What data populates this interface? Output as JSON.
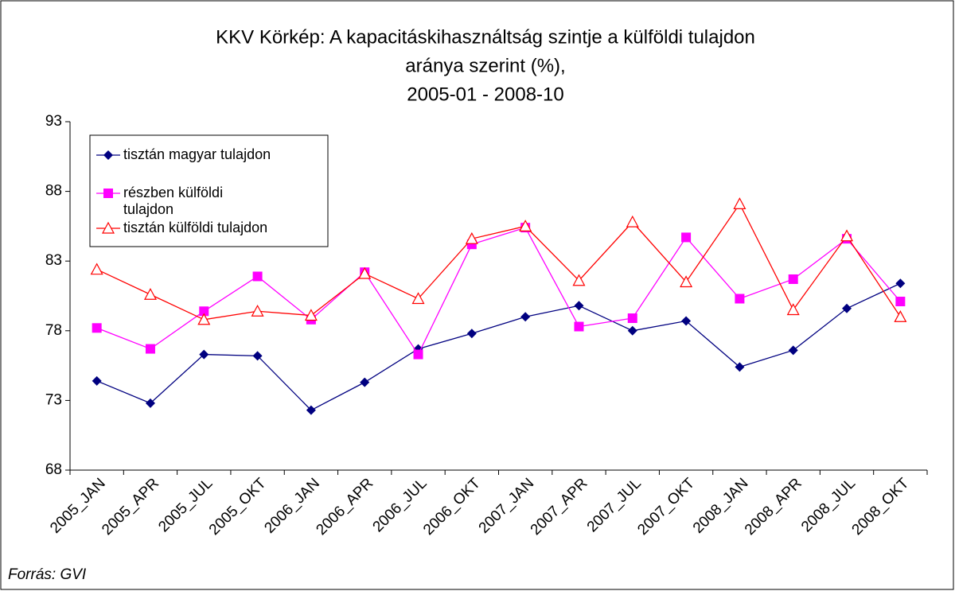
{
  "chart_data": {
    "type": "line",
    "title_lines": [
      "KKV Körkép: A kapacitáskihasználtság szintje a külföldi tulajdon",
      "aránya szerint (%),",
      "2005-01 - 2008-10"
    ],
    "source": "Forrás: GVI",
    "categories": [
      "2005_JAN",
      "2005_APR",
      "2005_JUL",
      "2005_OKT",
      "2006_JAN",
      "2006_APR",
      "2006_JUL",
      "2006_OKT",
      "2007_JAN",
      "2007_APR",
      "2007_JUL",
      "2007_OKT",
      "2008_JAN",
      "2008_APR",
      "2008_JUL",
      "2008_OKT"
    ],
    "ylim": [
      68,
      93
    ],
    "yticks": [
      68,
      73,
      78,
      83,
      88,
      93
    ],
    "legend": "upper left",
    "series": [
      {
        "name": "tisztán magyar tulajdon",
        "color": "#000080",
        "marker": "diamond",
        "values": [
          74.4,
          72.8,
          76.3,
          76.2,
          72.3,
          74.3,
          76.7,
          77.8,
          79.0,
          79.8,
          78.0,
          78.7,
          75.4,
          76.6,
          79.6,
          81.4
        ]
      },
      {
        "name": "részben külföldi tulajdon",
        "color": "#ff00ff",
        "marker": "square",
        "values": [
          78.2,
          76.7,
          79.4,
          81.9,
          78.8,
          82.2,
          76.3,
          84.2,
          85.4,
          78.3,
          78.9,
          84.7,
          80.3,
          81.7,
          84.6,
          80.1
        ]
      },
      {
        "name": "tisztán külföldi tulajdon",
        "color": "#ff0000",
        "marker": "triangle",
        "values": [
          82.4,
          80.6,
          78.8,
          79.4,
          79.1,
          82.1,
          80.3,
          84.6,
          85.5,
          81.6,
          85.8,
          81.5,
          87.1,
          79.5,
          84.8,
          79.0
        ]
      }
    ]
  }
}
